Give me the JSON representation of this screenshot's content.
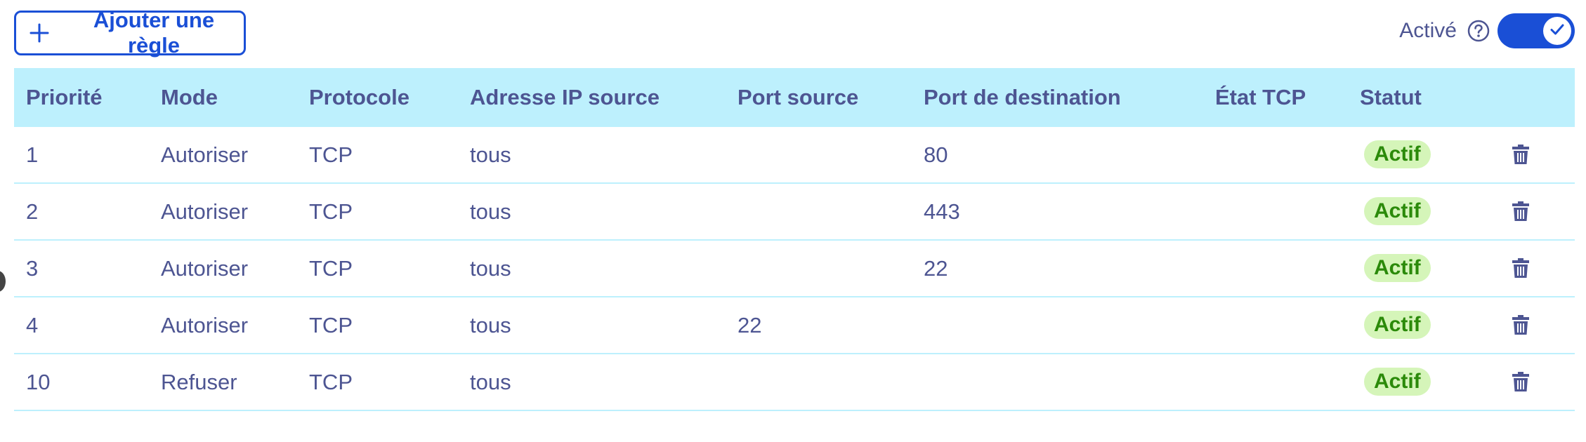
{
  "toolbar": {
    "add_rule_label": "Ajouter une règle",
    "toggle_label": "Activé",
    "toggle_on": true
  },
  "table": {
    "headers": [
      "Priorité",
      "Mode",
      "Protocole",
      "Adresse IP source",
      "Port source",
      "Port de destination",
      "État TCP",
      "Statut"
    ],
    "rows": [
      {
        "priority": "1",
        "mode": "Autoriser",
        "protocol": "TCP",
        "source_ip": "tous",
        "source_port": "",
        "dest_port": "80",
        "tcp_state": "",
        "status": "Actif"
      },
      {
        "priority": "2",
        "mode": "Autoriser",
        "protocol": "TCP",
        "source_ip": "tous",
        "source_port": "",
        "dest_port": "443",
        "tcp_state": "",
        "status": "Actif"
      },
      {
        "priority": "3",
        "mode": "Autoriser",
        "protocol": "TCP",
        "source_ip": "tous",
        "source_port": "",
        "dest_port": "22",
        "tcp_state": "",
        "status": "Actif"
      },
      {
        "priority": "4",
        "mode": "Autoriser",
        "protocol": "TCP",
        "source_ip": "tous",
        "source_port": "22",
        "dest_port": "",
        "tcp_state": "",
        "status": "Actif"
      },
      {
        "priority": "10",
        "mode": "Refuser",
        "protocol": "TCP",
        "source_ip": "tous",
        "source_port": "",
        "dest_port": "",
        "tcp_state": "",
        "status": "Actif"
      }
    ]
  },
  "colors": {
    "accent": "#1a4fd6",
    "header_bg": "#bdf0fd",
    "text": "#4d5592",
    "badge_bg": "#d5f5b9",
    "badge_text": "#2b8a0a"
  },
  "icons": {
    "add": "plus-icon",
    "help": "help-circle-icon",
    "toggle": "check-icon",
    "delete": "trash-icon"
  }
}
